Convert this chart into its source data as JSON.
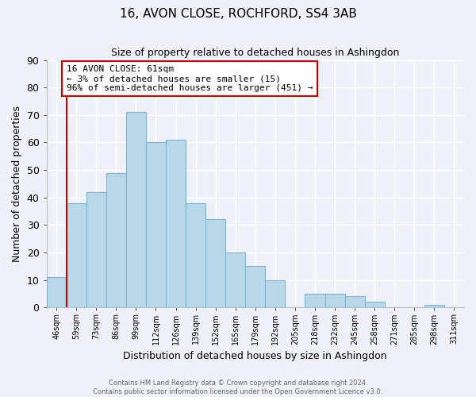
{
  "title": "16, AVON CLOSE, ROCHFORD, SS4 3AB",
  "subtitle": "Size of property relative to detached houses in Ashingdon",
  "xlabel": "Distribution of detached houses by size in Ashingdon",
  "ylabel": "Number of detached properties",
  "bar_color": "#b8d8ea",
  "bar_edge_color": "#7ab5d0",
  "background_color": "#eef2f8",
  "grid_color": "#ffffff",
  "bin_labels": [
    "46sqm",
    "59sqm",
    "73sqm",
    "86sqm",
    "99sqm",
    "112sqm",
    "126sqm",
    "139sqm",
    "152sqm",
    "165sqm",
    "179sqm",
    "192sqm",
    "205sqm",
    "218sqm",
    "232sqm",
    "245sqm",
    "258sqm",
    "271sqm",
    "285sqm",
    "298sqm",
    "311sqm"
  ],
  "bar_values": [
    11,
    38,
    42,
    49,
    71,
    60,
    61,
    38,
    32,
    20,
    15,
    10,
    0,
    5,
    5,
    4,
    2,
    0,
    0,
    1,
    0
  ],
  "ylim": [
    0,
    90
  ],
  "yticks": [
    0,
    10,
    20,
    30,
    40,
    50,
    60,
    70,
    80,
    90
  ],
  "vline_x_idx": 1,
  "vline_color": "#cc0000",
  "annotation_title": "16 AVON CLOSE: 61sqm",
  "annotation_line1": "← 3% of detached houses are smaller (15)",
  "annotation_line2": "96% of semi-detached houses are larger (451) →",
  "footer_line1": "Contains HM Land Registry data © Crown copyright and database right 2024.",
  "footer_line2": "Contains public sector information licensed under the Open Government Licence v3.0."
}
